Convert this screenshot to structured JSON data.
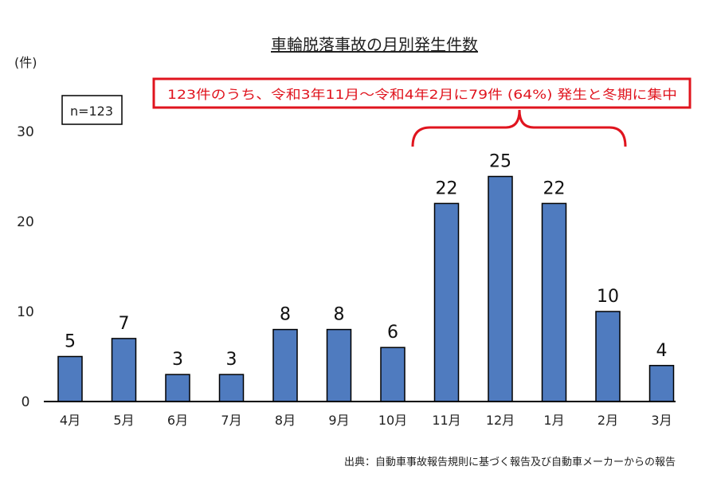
{
  "chart_data": {
    "type": "bar",
    "title": "車輪脱落事故の月別発生件数",
    "ylabel": "(件)",
    "categories": [
      "4月",
      "5月",
      "6月",
      "7月",
      "8月",
      "9月",
      "10月",
      "11月",
      "12月",
      "1月",
      "2月",
      "3月"
    ],
    "values": [
      5,
      7,
      3,
      3,
      8,
      8,
      6,
      22,
      25,
      22,
      10,
      4
    ],
    "ylim": [
      0,
      30
    ],
    "yticks": [
      0,
      10,
      20,
      30
    ],
    "grid": false,
    "bar_color": "#4f7bbf",
    "annotations": {
      "n_label": "n=123",
      "callout": "123件のうち、令和3年11月～令和4年2月に79件 (64%) 発生と冬期に集中",
      "callout_color": "#e0141e",
      "bracket_range": [
        "11月",
        "2月"
      ]
    },
    "source": "出典：自動車事故報告規則に基づく報告及び自動車メーカーからの報告"
  }
}
